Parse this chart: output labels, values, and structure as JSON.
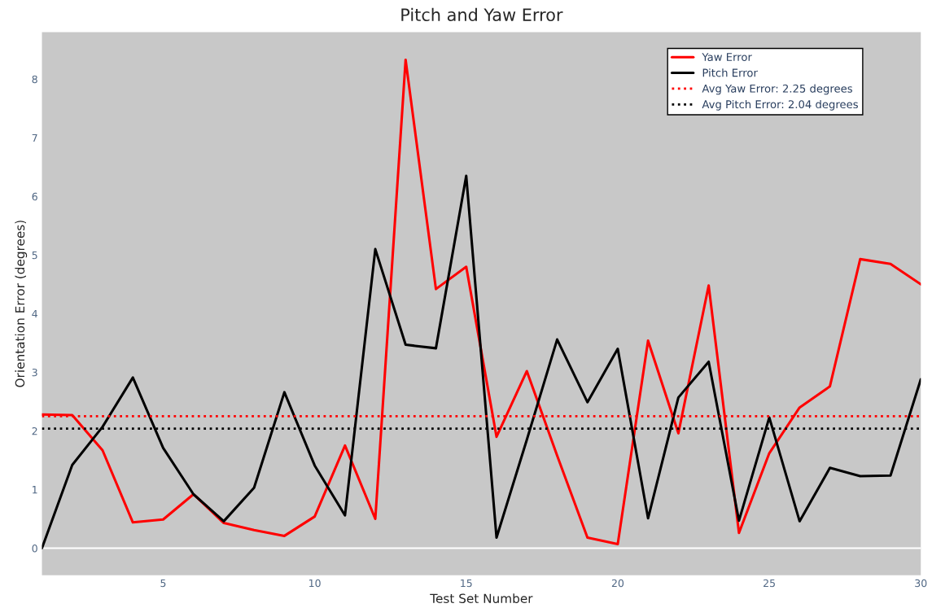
{
  "chart_data": {
    "type": "line",
    "title": "Pitch and Yaw Error",
    "xlabel": "Test Set Number",
    "ylabel": "Orientation Error (degrees)",
    "x": [
      1,
      2,
      3,
      4,
      5,
      6,
      7,
      8,
      9,
      10,
      11,
      12,
      13,
      14,
      15,
      16,
      17,
      18,
      19,
      20,
      21,
      22,
      23,
      24,
      25,
      26,
      27,
      28,
      29,
      30
    ],
    "series": [
      {
        "name": "Yaw Error",
        "color": "#ff0000",
        "values": [
          2.28,
          2.27,
          1.67,
          0.44,
          0.49,
          0.92,
          0.43,
          0.31,
          0.21,
          0.54,
          1.75,
          0.5,
          8.33,
          4.42,
          4.8,
          1.9,
          3.02,
          1.58,
          0.18,
          0.07,
          3.54,
          1.96,
          4.48,
          0.26,
          1.62,
          2.4,
          2.76,
          4.93,
          4.85,
          4.5
        ]
      },
      {
        "name": "Pitch Error",
        "color": "#000000",
        "values": [
          0.0,
          1.42,
          2.07,
          2.91,
          1.71,
          0.92,
          0.46,
          1.03,
          2.66,
          1.41,
          0.56,
          5.1,
          3.47,
          3.41,
          6.35,
          0.18,
          1.85,
          3.56,
          2.49,
          3.4,
          0.51,
          2.57,
          3.18,
          0.47,
          2.23,
          0.46,
          1.37,
          1.23,
          1.24,
          2.88
        ]
      }
    ],
    "ref_lines": [
      {
        "axis": "y",
        "value": 0,
        "color": "#ffffff",
        "line_style": "solid"
      },
      {
        "axis": "y",
        "value": 2.25,
        "label": "Avg Yaw Error: 2.25 degrees",
        "color": "#ff0000",
        "line_style": "dotted"
      },
      {
        "axis": "y",
        "value": 2.04,
        "label": "Avg Pitch Error: 2.04 degrees",
        "color": "#000000",
        "line_style": "dotted"
      }
    ],
    "xlim": [
      1,
      30
    ],
    "ylim": [
      -0.46,
      8.8
    ],
    "xticks": [
      5,
      10,
      15,
      20,
      25,
      30
    ],
    "yticks": [
      0,
      1,
      2,
      3,
      4,
      5,
      6,
      7,
      8
    ],
    "grid": false,
    "legend": "top right",
    "marker": "none",
    "line_style": "solid"
  }
}
